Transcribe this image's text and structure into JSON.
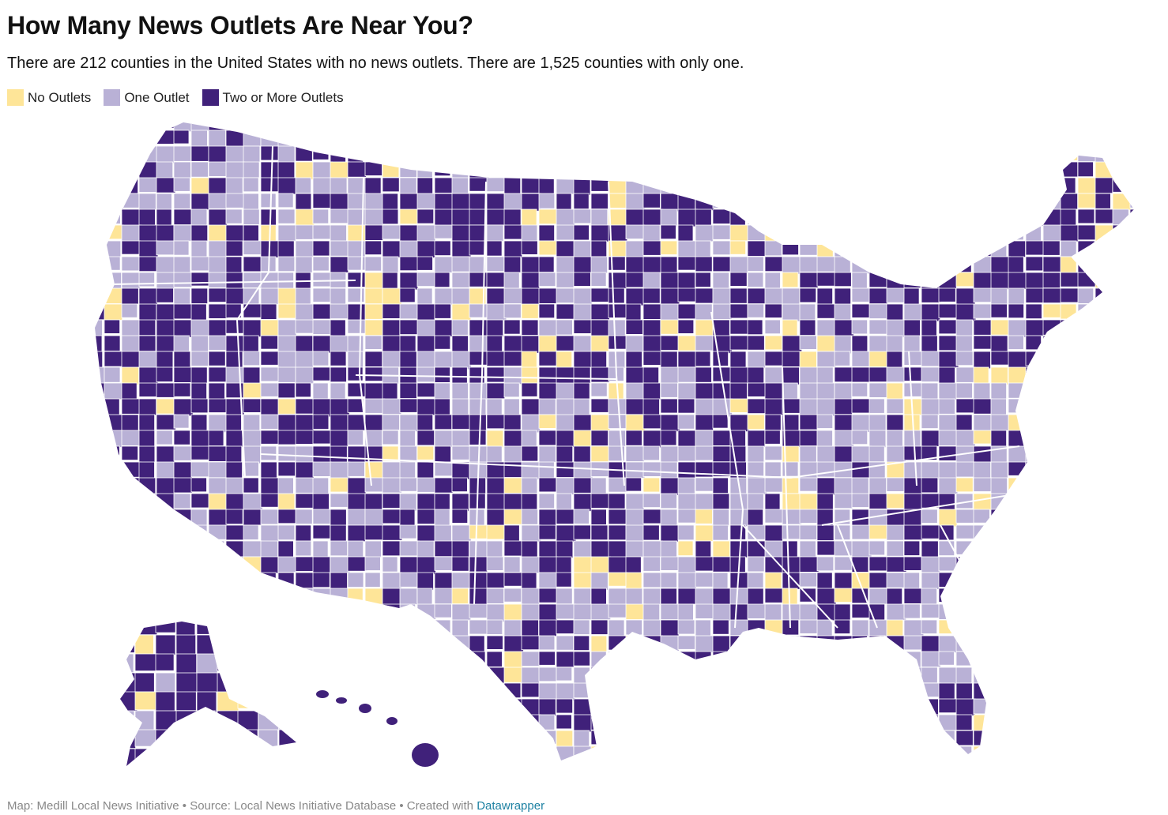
{
  "title": "How Many News Outlets Are Near You?",
  "subtitle": "There are 212 counties in the United States with no news outlets. There are 1,525 counties with only one.",
  "legend": [
    {
      "label": "No Outlets",
      "color": "#fee598"
    },
    {
      "label": "One Outlet",
      "color": "#b9b1d6"
    },
    {
      "label": "Two or More Outlets",
      "color": "#40217a"
    }
  ],
  "footer": {
    "map_credit": "Map: Medill Local News Initiative",
    "source": "Source: Local News Initiative Database",
    "created_with": "Created with",
    "tool": "Datawrapper",
    "separator": "•"
  },
  "map": {
    "type": "choropleth",
    "region": "United States counties",
    "categories": [
      "No Outlets",
      "One Outlet",
      "Two or More Outlets"
    ],
    "border_color": "#ffffff"
  }
}
